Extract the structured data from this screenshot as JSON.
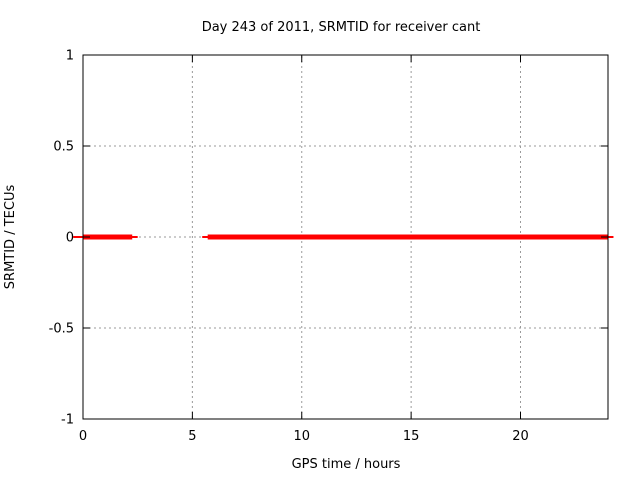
{
  "chart_data": {
    "type": "line",
    "title": "Day 243 of 2011, SRMTID for receiver cant",
    "xlabel": "GPS time / hours",
    "ylabel": "SRMTID / TECUs",
    "xlim": [
      0,
      24
    ],
    "ylim": [
      -1,
      1
    ],
    "x_ticks": [
      0,
      5,
      10,
      15,
      20
    ],
    "x_tick_labels": [
      "0",
      "5",
      "10",
      "15",
      "20"
    ],
    "y_ticks": [
      -1,
      -0.5,
      0,
      0.5,
      1
    ],
    "y_tick_labels": [
      "-1",
      "-0.5",
      "0",
      "0.5",
      "1"
    ],
    "grid": true,
    "legend": false,
    "series": [
      {
        "name": "SRMTID",
        "color": "#ff0000",
        "y_value": 0,
        "segments": [
          {
            "x_start": 0.0,
            "x_end": 2.25,
            "cap_start": -0.45,
            "cap_end": 2.5
          },
          {
            "x_start": 5.7,
            "x_end": 24.0,
            "cap_start": 5.45,
            "cap_end": 24.25
          }
        ]
      }
    ],
    "colors": {
      "line": "#ff0000",
      "grid": "#9a9a9a",
      "border": "#000000",
      "text": "#000000",
      "background": "#ffffff"
    }
  }
}
